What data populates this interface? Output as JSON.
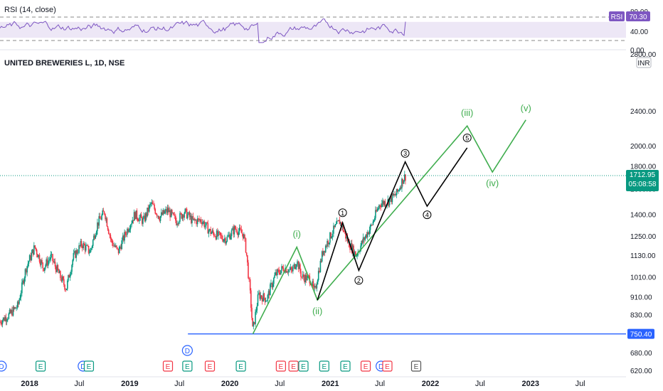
{
  "rsi_panel": {
    "label": "RSI (14, close)",
    "value_badge": "RSI",
    "value": "70.30",
    "levels": [
      "80.00",
      "40.00",
      "0.00"
    ]
  },
  "main_panel": {
    "symbol": "UNITED BREWERIES L, 1D, NSE",
    "currency": "INR",
    "price_axis_top": "2800.00",
    "price_ticks": [
      2400,
      2000,
      1800,
      1600,
      1400,
      1250,
      1130,
      1010,
      910,
      830,
      680,
      620
    ],
    "last_price": "1712.95",
    "countdown": "05:08:58",
    "support_level": "750.40",
    "time_labels": [
      "2018",
      "Jul",
      "2019",
      "Jul",
      "2020",
      "Jul",
      "2021",
      "Jul",
      "2022",
      "Jul",
      "2023",
      "Jul"
    ]
  },
  "chart_data": {
    "type": "line",
    "title": "UNITED BREWERIES L, 1D, NSE",
    "scale": "log",
    "ylim": [
      600,
      2900
    ],
    "x_range": [
      "2017-09-15",
      "2023-12-15"
    ],
    "price_path": [
      [
        "2017-09-15",
        800
      ],
      [
        "2017-10-20",
        830
      ],
      [
        "2017-11-20",
        870
      ],
      [
        "2017-12-20",
        1060
      ],
      [
        "2018-01-20",
        1180
      ],
      [
        "2018-02-20",
        1060
      ],
      [
        "2018-03-20",
        1120
      ],
      [
        "2018-04-20",
        1020
      ],
      [
        "2018-05-15",
        950
      ],
      [
        "2018-06-10",
        1120
      ],
      [
        "2018-07-10",
        1200
      ],
      [
        "2018-08-10",
        1150
      ],
      [
        "2018-09-05",
        1330
      ],
      [
        "2018-10-01",
        1420
      ],
      [
        "2018-10-25",
        1220
      ],
      [
        "2018-11-20",
        1150
      ],
      [
        "2018-12-20",
        1280
      ],
      [
        "2019-01-20",
        1400
      ],
      [
        "2019-02-20",
        1350
      ],
      [
        "2019-03-20",
        1480
      ],
      [
        "2019-04-20",
        1380
      ],
      [
        "2019-05-20",
        1430
      ],
      [
        "2019-06-20",
        1350
      ],
      [
        "2019-07-20",
        1420
      ],
      [
        "2019-08-20",
        1350
      ],
      [
        "2019-09-20",
        1360
      ],
      [
        "2019-10-20",
        1280
      ],
      [
        "2019-11-20",
        1250
      ],
      [
        "2019-12-20",
        1230
      ],
      [
        "2020-01-20",
        1300
      ],
      [
        "2020-02-20",
        1260
      ],
      [
        "2020-03-01",
        1150
      ],
      [
        "2020-03-25",
        760
      ],
      [
        "2020-04-15",
        920
      ],
      [
        "2020-05-15",
        900
      ],
      [
        "2020-06-15",
        1020
      ],
      [
        "2020-07-15",
        1060
      ],
      [
        "2020-08-15",
        1040
      ],
      [
        "2020-09-01",
        1100
      ],
      [
        "2020-09-20",
        1010
      ],
      [
        "2020-10-20",
        1000
      ],
      [
        "2020-11-05",
        930
      ],
      [
        "2020-12-05",
        1150
      ],
      [
        "2021-01-10",
        1280
      ],
      [
        "2021-02-05",
        1350
      ],
      [
        "2021-03-05",
        1220
      ],
      [
        "2021-04-05",
        1130
      ],
      [
        "2021-05-01",
        1220
      ],
      [
        "2021-06-01",
        1320
      ],
      [
        "2021-07-01",
        1480
      ],
      [
        "2021-08-01",
        1500
      ],
      [
        "2021-09-01",
        1560
      ],
      [
        "2021-09-25",
        1690
      ],
      [
        "2021-10-05",
        1712.95
      ]
    ],
    "green_wave_path": [
      [
        "2020-03-25",
        750.4
      ],
      [
        "2020-09-01",
        1180
      ],
      [
        "2020-11-15",
        895
      ],
      [
        "2022-05-15",
        2220
      ],
      [
        "2022-08-15",
        1745
      ],
      [
        "2022-12-15",
        2290
      ]
    ],
    "green_wave_labels": [
      {
        "label": "(i)",
        "date": "2020-09-01",
        "price": 1180
      },
      {
        "label": "(ii)",
        "date": "2020-11-15",
        "price": 895
      },
      {
        "label": "(iii)",
        "date": "2022-05-15",
        "price": 2220
      },
      {
        "label": "(iv)",
        "date": "2022-08-15",
        "price": 1745
      },
      {
        "label": "(v)",
        "date": "2022-12-15",
        "price": 2290
      }
    ],
    "black_wave_path": [
      [
        "2020-11-15",
        895
      ],
      [
        "2021-02-15",
        1340
      ],
      [
        "2021-04-15",
        1045
      ],
      [
        "2021-10-01",
        1840
      ],
      [
        "2021-12-20",
        1460
      ],
      [
        "2022-05-15",
        1980
      ]
    ],
    "black_wave_labels": [
      {
        "label": "1",
        "date": "2021-02-15",
        "price": 1340
      },
      {
        "label": "2",
        "date": "2021-04-15",
        "price": 1045
      },
      {
        "label": "3",
        "date": "2021-10-01",
        "price": 1840
      },
      {
        "label": "4",
        "date": "2021-12-20",
        "price": 1460
      },
      {
        "label": "5",
        "date": "2022-05-15",
        "price": 1980
      }
    ],
    "support_line": {
      "price": 750.4,
      "from": "2019-08-01"
    },
    "rsi_ylim": [
      0,
      100
    ],
    "rsi_band": [
      30,
      70
    ],
    "rsi_last": 70.3,
    "events": [
      {
        "type": "D",
        "date": "2017-09-20",
        "color": "#2962ff"
      },
      {
        "type": "E",
        "date": "2018-02-10",
        "color": "#089981"
      },
      {
        "type": "D",
        "date": "2018-07-15",
        "color": "#2962ff"
      },
      {
        "type": "E",
        "date": "2018-08-05",
        "color": "#089981"
      },
      {
        "type": "E",
        "date": "2019-05-20",
        "color": "#f23645"
      },
      {
        "type": "E",
        "date": "2019-07-30",
        "color": "#089981"
      },
      {
        "type": "D",
        "date": "2019-07-30",
        "color": "#2962ff",
        "raised": true
      },
      {
        "type": "E",
        "date": "2019-10-20",
        "color": "#f23645"
      },
      {
        "type": "E",
        "date": "2020-02-10",
        "color": "#089981"
      },
      {
        "type": "E",
        "date": "2020-07-05",
        "color": "#f23645"
      },
      {
        "type": "E",
        "date": "2020-08-20",
        "color": "#f23645"
      },
      {
        "type": "E",
        "date": "2020-09-25",
        "color": "#089981"
      },
      {
        "type": "E",
        "date": "2020-12-10",
        "color": "#089981"
      },
      {
        "type": "E",
        "date": "2021-02-25",
        "color": "#089981"
      },
      {
        "type": "E",
        "date": "2021-05-10",
        "color": "#f23645"
      },
      {
        "type": "D",
        "date": "2021-07-05",
        "color": "#2962ff"
      },
      {
        "type": "E",
        "date": "2021-07-28",
        "color": "#f23645"
      },
      {
        "type": "E",
        "date": "2021-11-10",
        "color": "#555555"
      }
    ]
  },
  "colors": {
    "up": "#089981",
    "down": "#f23645",
    "green_wave": "#3fad4e",
    "black_wave": "#000000",
    "support": "#2962ff",
    "rsi_line": "#7e57c2",
    "rsi_band": "#ede7f6",
    "last_price_badge": "#089981"
  }
}
